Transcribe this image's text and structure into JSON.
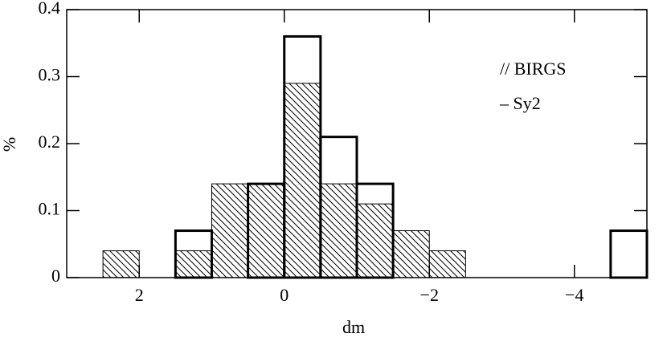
{
  "chart_data": {
    "type": "histogram",
    "x_label": "dm",
    "y_label": "%",
    "bins": [
      3,
      2.5,
      2,
      1.5,
      1,
      0.5,
      0,
      -0.5,
      -1,
      -1.5,
      -2,
      -2.5,
      -3,
      -3.5,
      -4,
      -4.5,
      -5
    ],
    "series": [
      {
        "name": "// BIRGS",
        "style": "hatched",
        "color": "#000000",
        "values": [
          0,
          0.04,
          0,
          0.04,
          0.14,
          0.14,
          0.29,
          0.14,
          0.11,
          0.07,
          0.04,
          0,
          0,
          0,
          0,
          0
        ]
      },
      {
        "name": "– Sy2",
        "style": "outline",
        "color": "#000000",
        "values": [
          0,
          0,
          0,
          0.07,
          0,
          0.14,
          0.36,
          0.21,
          0.14,
          0,
          0,
          0,
          0,
          0,
          0,
          0.07
        ]
      }
    ],
    "xlim": [
      3,
      -5
    ],
    "xticks": [
      2,
      0,
      {
        "value": -2,
        "label": "−2"
      },
      {
        "value": -4,
        "label": "−4"
      }
    ],
    "ylim": [
      0,
      0.4
    ],
    "yticks": [
      0,
      0.1,
      0.2,
      0.3,
      0.4
    ]
  }
}
